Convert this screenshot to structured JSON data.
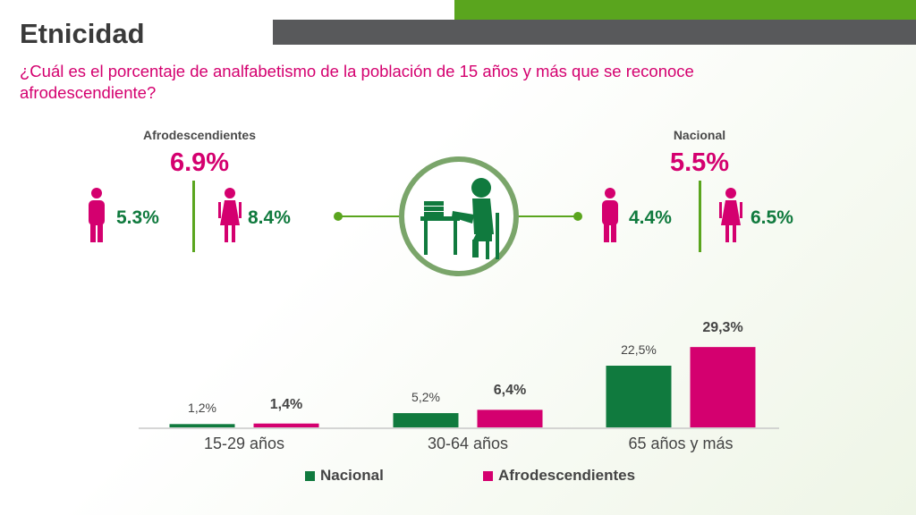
{
  "title": "Etnicidad",
  "question": "¿Cuál es el porcentaje de analfabetismo de la población de 15 años y más que se reconoce afrodescendiente?",
  "afro": {
    "header": "Afrodescendientes",
    "total": "6.9%",
    "men": "5.3%",
    "women": "8.4%"
  },
  "nacional": {
    "header": "Nacional",
    "total": "5.5%",
    "men": "4.4%",
    "women": "6.5%"
  },
  "colors": {
    "green": "#107a3e",
    "magenta": "#d4006f",
    "accent_green": "#5aa51e",
    "gray": "#58595b"
  },
  "icons": {
    "man": "man-icon",
    "woman": "woman-icon",
    "center": "person-studying-icon"
  },
  "chart_data": {
    "type": "bar",
    "categories": [
      "15-29 años",
      "30-64 años",
      "65 años y más"
    ],
    "series": [
      {
        "name": "Nacional",
        "values": [
          1.2,
          5.2,
          22.5
        ],
        "labels": [
          "1,2%",
          "5,2%",
          "22,5%"
        ],
        "color": "#107a3e"
      },
      {
        "name": "Afrodescendientes",
        "values": [
          1.4,
          6.4,
          29.3
        ],
        "labels": [
          "1,4%",
          "6,4%",
          "29,3%"
        ],
        "color": "#d4006f"
      }
    ],
    "ylim": [
      0,
      30
    ],
    "grid": false,
    "legend": "bottom"
  }
}
